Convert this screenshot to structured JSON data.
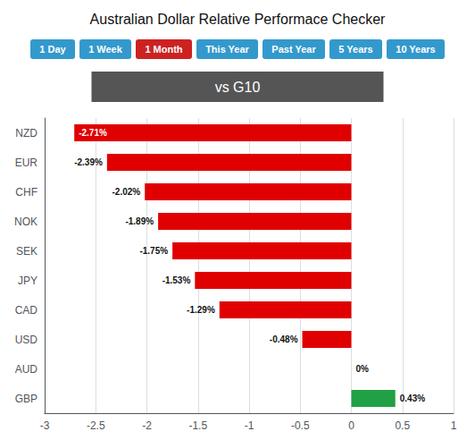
{
  "chart_data": {
    "type": "bar",
    "orientation": "horizontal",
    "title": "Australian Dollar Relative Performace Checker",
    "subtitle": "vs G10",
    "annotations": [
      {
        "text": "1 Day",
        "color": "#3399cc"
      },
      {
        "text": "1 Week",
        "color": "#3399cc"
      },
      {
        "text": "1 Month",
        "color": "#cc2222"
      },
      {
        "text": "This Year",
        "color": "#3399cc"
      },
      {
        "text": "Past Year",
        "color": "#3399cc"
      },
      {
        "text": "5 Years",
        "color": "#3399cc"
      },
      {
        "text": "10 Years",
        "color": "#3399cc"
      }
    ],
    "categories": [
      "GBP",
      "AUD",
      "USD",
      "CAD",
      "JPY",
      "SEK",
      "NOK",
      "CHF",
      "EUR",
      "NZD"
    ],
    "values": [
      0.43,
      0.0,
      -0.48,
      -1.29,
      -1.53,
      -1.75,
      -1.89,
      -2.02,
      -2.39,
      -2.71
    ],
    "value_labels": [
      "0.43%",
      "0%",
      "-0.48%",
      "-1.29%",
      "-1.53%",
      "-1.75%",
      "-1.89%",
      "-2.02%",
      "-2.39%",
      "-2.71%"
    ],
    "data_labels": true,
    "colors": [
      "#21a045",
      "#e00000",
      "#e00000",
      "#e00000",
      "#e00000",
      "#e00000",
      "#e00000",
      "#e00000",
      "#e00000",
      "#e00000"
    ],
    "xlim": [
      -3,
      1
    ],
    "xticks": [
      -3,
      -2.5,
      -2,
      -1.5,
      -1,
      -0.5,
      0,
      0.5,
      1
    ],
    "grid": true
  }
}
